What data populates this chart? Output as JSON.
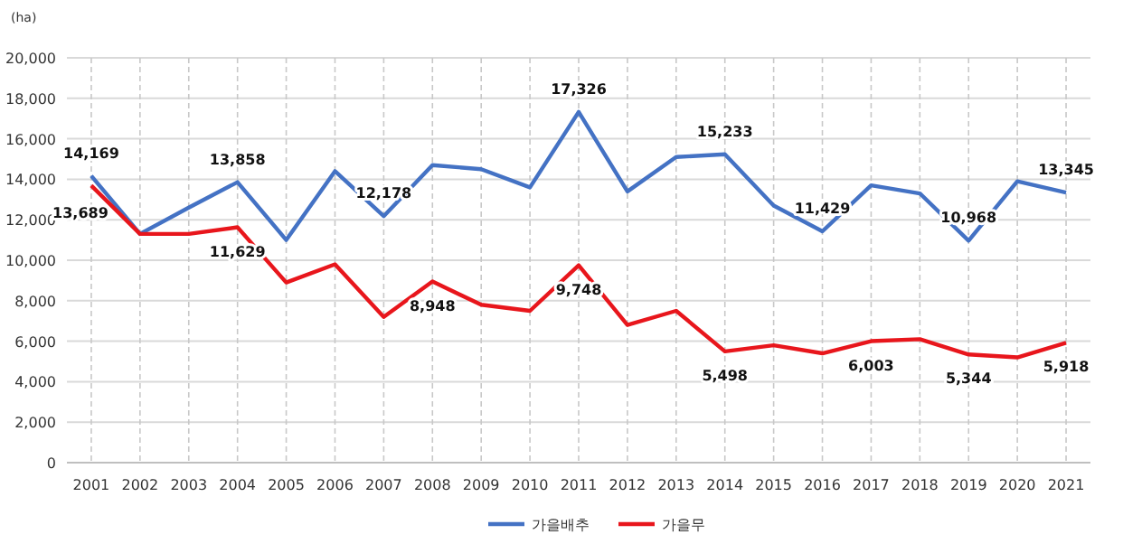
{
  "chart_data": {
    "type": "line",
    "ylabel": "(ha)",
    "categories": [
      "2001",
      "2002",
      "2003",
      "2004",
      "2005",
      "2006",
      "2007",
      "2008",
      "2009",
      "2010",
      "2011",
      "2012",
      "2013",
      "2014",
      "2015",
      "2016",
      "2017",
      "2018",
      "2019",
      "2020",
      "2021"
    ],
    "series": [
      {
        "name": "가을배추",
        "color": "#4472c4",
        "values": [
          14169,
          11300,
          12600,
          13858,
          11000,
          14400,
          12178,
          14700,
          14500,
          13600,
          17326,
          13400,
          15100,
          15233,
          12700,
          11429,
          13700,
          13300,
          10968,
          13900,
          13345
        ],
        "value_labels": [
          "14,169",
          null,
          null,
          "13,858",
          null,
          null,
          "12,178",
          null,
          null,
          null,
          "17,326",
          null,
          null,
          "15,233",
          null,
          "11,429",
          null,
          null,
          "10,968",
          null,
          "13,345"
        ]
      },
      {
        "name": "가을무",
        "color": "#e8161c",
        "values": [
          13689,
          11300,
          11300,
          11629,
          8900,
          9800,
          7200,
          8948,
          7800,
          7500,
          9748,
          6800,
          7500,
          5498,
          5800,
          5400,
          6003,
          6100,
          5344,
          5200,
          5918
        ],
        "value_labels": [
          "13,689",
          null,
          null,
          "11,629",
          null,
          null,
          null,
          "8,948",
          null,
          null,
          "9,748",
          null,
          null,
          "5,498",
          null,
          null,
          "6,003",
          null,
          "5,344",
          null,
          "5,918"
        ]
      }
    ],
    "ylim": [
      0,
      20000
    ],
    "yticks": [
      0,
      {
        "value": 2000,
        "label": "2,000"
      },
      {
        "value": 4000,
        "label": "4,000"
      },
      {
        "value": 6000,
        "label": "6,000"
      },
      {
        "value": 8000,
        "label": "8,000"
      },
      {
        "value": 10000,
        "label": "10,000"
      },
      {
        "value": 12000,
        "label": "12,000"
      },
      {
        "value": 14000,
        "label": "14,000"
      },
      {
        "value": 16000,
        "label": "16,000"
      },
      {
        "value": 18000,
        "label": "18,000"
      },
      {
        "value": 20000,
        "label": "20,000"
      }
    ],
    "grid": true,
    "legend": "bottom"
  }
}
